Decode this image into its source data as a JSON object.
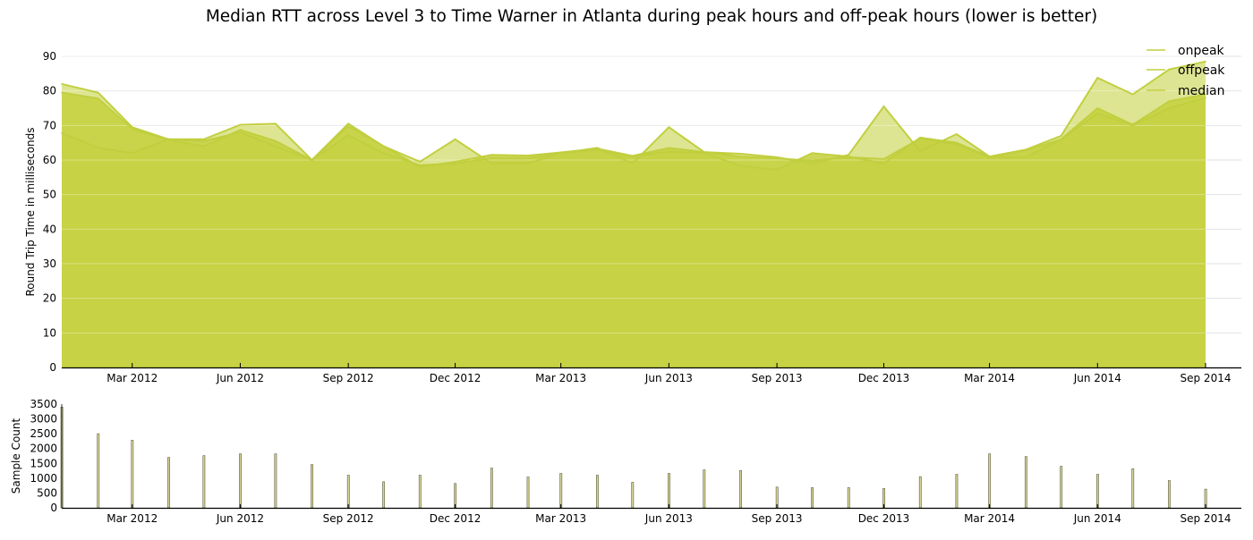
{
  "chart_data": [
    {
      "type": "area",
      "title": "Median RTT across Level 3 to Time Warner in Atlanta during peak hours and off-peak hours (lower is better)",
      "xlabel": "",
      "ylabel": "Round Trip Time in milliseconds",
      "ylim": [
        0,
        90
      ],
      "yticks": [
        0,
        10,
        20,
        30,
        40,
        50,
        60,
        70,
        80,
        90
      ],
      "xticks": [
        "Mar 2012",
        "Jun 2012",
        "Sep 2012",
        "Dec 2012",
        "Mar 2013",
        "Jun 2013",
        "Sep 2013",
        "Dec 2013",
        "Mar 2014",
        "Jun 2014",
        "Sep 2014"
      ],
      "grid": true,
      "legend_position": "top-right",
      "x": [
        "2012-01-01",
        "2012-02-01",
        "2012-03-01",
        "2012-04-01",
        "2012-05-01",
        "2012-06-01",
        "2012-07-01",
        "2012-08-01",
        "2012-09-01",
        "2012-10-01",
        "2012-11-01",
        "2012-12-01",
        "2013-01-01",
        "2013-02-01",
        "2013-03-01",
        "2013-04-01",
        "2013-05-01",
        "2013-06-01",
        "2013-07-01",
        "2013-08-01",
        "2013-09-01",
        "2013-10-01",
        "2013-11-01",
        "2013-12-01",
        "2014-01-01",
        "2014-02-01",
        "2014-03-01",
        "2014-04-01",
        "2014-05-01",
        "2014-06-01",
        "2014-07-01",
        "2014-08-01",
        "2014-09-01"
      ],
      "series": [
        {
          "name": "onpeak",
          "color": "#c1cf3f",
          "values": [
            82.0,
            79.5,
            69.5,
            66.0,
            66.0,
            70.2,
            70.5,
            60.0,
            70.5,
            64.0,
            59.5,
            66.0,
            59.0,
            59.0,
            62.0,
            63.5,
            59.0,
            69.5,
            62.3,
            61.8,
            60.8,
            59.0,
            61.5,
            75.5,
            62.5,
            67.5,
            61.0,
            63.0,
            67.0,
            83.8,
            79.0,
            86.2,
            88.5
          ]
        },
        {
          "name": "offpeak",
          "color": "#c1cf3f",
          "values": [
            67.8,
            63.5,
            62.0,
            66.0,
            65.5,
            68.0,
            64.0,
            60.0,
            67.2,
            62.0,
            58.5,
            59.0,
            60.5,
            60.5,
            62.0,
            63.0,
            61.0,
            62.5,
            62.0,
            58.3,
            57.2,
            62.0,
            61.0,
            59.0,
            66.5,
            65.0,
            61.0,
            60.8,
            66.0,
            73.5,
            70.0,
            75.0,
            78.0
          ]
        },
        {
          "name": "median",
          "color": "#c1cf3f",
          "values": [
            79.5,
            77.8,
            69.0,
            65.8,
            64.0,
            68.7,
            65.5,
            60.0,
            69.8,
            64.0,
            58.0,
            59.5,
            61.5,
            61.3,
            62.2,
            63.3,
            61.2,
            63.5,
            62.3,
            61.0,
            60.5,
            59.8,
            60.8,
            60.3,
            66.2,
            64.5,
            60.8,
            62.8,
            66.0,
            75.0,
            70.2,
            77.0,
            79.0
          ]
        }
      ]
    },
    {
      "type": "bar",
      "xlabel": "",
      "ylabel": "Sample Count",
      "ylim": [
        0,
        3500
      ],
      "yticks": [
        0,
        500,
        1000,
        1500,
        2000,
        2500,
        3000,
        3500
      ],
      "xticks": [
        "Mar 2012",
        "Jun 2012",
        "Sep 2012",
        "Dec 2012",
        "Mar 2013",
        "Jun 2013",
        "Sep 2013",
        "Dec 2013",
        "Mar 2014",
        "Jun 2014",
        "Sep 2014"
      ],
      "bar_color": "#d6d696",
      "x": [
        "2012-01-01",
        "2012-02-01",
        "2012-03-01",
        "2012-04-01",
        "2012-05-01",
        "2012-06-01",
        "2012-07-01",
        "2012-08-01",
        "2012-09-01",
        "2012-10-01",
        "2012-11-01",
        "2012-12-01",
        "2013-01-01",
        "2013-02-01",
        "2013-03-01",
        "2013-04-01",
        "2013-05-01",
        "2013-06-01",
        "2013-07-01",
        "2013-08-01",
        "2013-09-01",
        "2013-10-01",
        "2013-11-01",
        "2013-12-01",
        "2014-01-01",
        "2014-02-01",
        "2014-03-01",
        "2014-04-01",
        "2014-05-01",
        "2014-06-01",
        "2014-07-01",
        "2014-08-01",
        "2014-09-01"
      ],
      "values": [
        3400,
        2500,
        2280,
        1700,
        1760,
        1820,
        1820,
        1460,
        1100,
        880,
        1100,
        820,
        1340,
        1040,
        1160,
        1100,
        860,
        1160,
        1280,
        1260,
        700,
        680,
        680,
        650,
        1050,
        1130,
        1820,
        1730,
        1400,
        1130,
        1320,
        920,
        630
      ]
    }
  ]
}
